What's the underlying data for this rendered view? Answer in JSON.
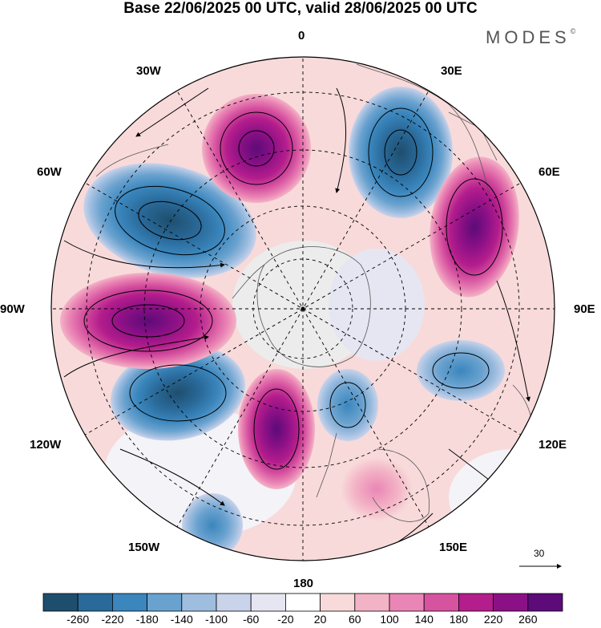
{
  "title": "Base 22/06/2025 00 UTC, valid 28/06/2025 00 UTC",
  "brand": {
    "name": "MODES",
    "mark": "©"
  },
  "longitude_labels": {
    "lon_0": "0",
    "lon_30e": "30E",
    "lon_60e": "60E",
    "lon_90e": "90E",
    "lon_120e": "120E",
    "lon_150e": "150E",
    "lon_180": "180",
    "lon_150w": "150W",
    "lon_120w": "120W",
    "lon_90w": "90W",
    "lon_60w": "60W",
    "lon_30w": "30W"
  },
  "vector_reference": {
    "label": "30"
  },
  "colorbar": {
    "colors": [
      "#1e4e6e",
      "#2a6a9a",
      "#3a86bd",
      "#6aa2cf",
      "#9ebddf",
      "#c9d3ea",
      "#e6e6f2",
      "#ffffff",
      "#f8dada",
      "#f3b3c6",
      "#ea86b5",
      "#d653a0",
      "#b41d8c",
      "#8b1086",
      "#5c0b78"
    ],
    "labels": [
      "-260",
      "-220",
      "-180",
      "-140",
      "-100",
      "-60",
      "-20",
      "20",
      "60",
      "100",
      "140",
      "180",
      "220",
      "260"
    ]
  }
}
